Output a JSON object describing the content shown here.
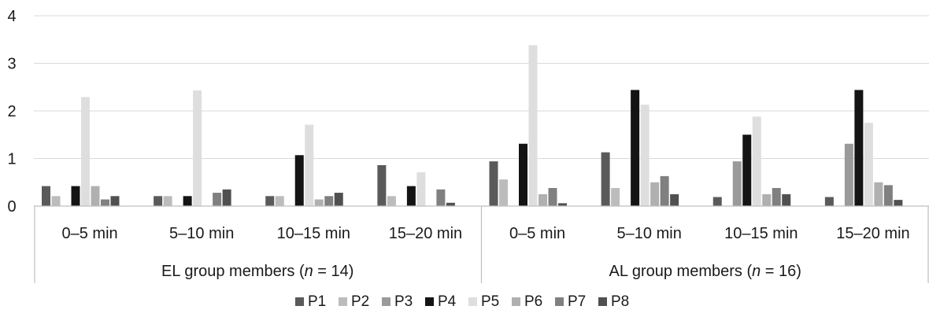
{
  "chart_data": {
    "type": "bar",
    "title": "",
    "xlabel": "",
    "ylabel": "",
    "ylim": [
      0,
      4
    ],
    "yticks": [
      "0",
      "1",
      "2",
      "3",
      "4"
    ],
    "grid": true,
    "legend_position": "bottom",
    "groups": [
      {
        "label_pre": "EL group members (",
        "label_n": "n",
        "label_post": " = 14)"
      },
      {
        "label_pre": "AL group members (",
        "label_n": "n",
        "label_post": " = 16)"
      }
    ],
    "categories": [
      "0–5 min",
      "5–10 min",
      "10–15 min",
      "15–20 min",
      "0–5 min",
      "5–10 min",
      "10–15 min",
      "15–20 min"
    ],
    "series": [
      {
        "name": "P1",
        "color": "#5a5a5a",
        "values": [
          0.42,
          0.21,
          0.21,
          0.86,
          0.94,
          1.13,
          0.19,
          0.19
        ]
      },
      {
        "name": "P2",
        "color": "#bcbcbc",
        "values": [
          0.21,
          0.21,
          0.21,
          0.21,
          0.56,
          0.38,
          0.0,
          0.0
        ]
      },
      {
        "name": "P3",
        "color": "#9a9a9a",
        "values": [
          0.0,
          0.0,
          0.0,
          0.0,
          0.0,
          0.0,
          0.94,
          1.31
        ]
      },
      {
        "name": "P4",
        "color": "#141414",
        "values": [
          0.42,
          0.21,
          1.07,
          0.42,
          1.31,
          2.44,
          1.5,
          2.44
        ]
      },
      {
        "name": "P5",
        "color": "#dedede",
        "values": [
          2.29,
          2.43,
          1.71,
          0.71,
          3.38,
          2.13,
          1.88,
          1.75
        ]
      },
      {
        "name": "P6",
        "color": "#b0b0b0",
        "values": [
          0.42,
          0.0,
          0.14,
          0.0,
          0.25,
          0.5,
          0.25,
          0.5
        ]
      },
      {
        "name": "P7",
        "color": "#808080",
        "values": [
          0.14,
          0.28,
          0.21,
          0.35,
          0.38,
          0.63,
          0.38,
          0.44
        ]
      },
      {
        "name": "P8",
        "color": "#505050",
        "values": [
          0.21,
          0.35,
          0.28,
          0.07,
          0.06,
          0.25,
          0.25,
          0.13
        ]
      }
    ]
  }
}
